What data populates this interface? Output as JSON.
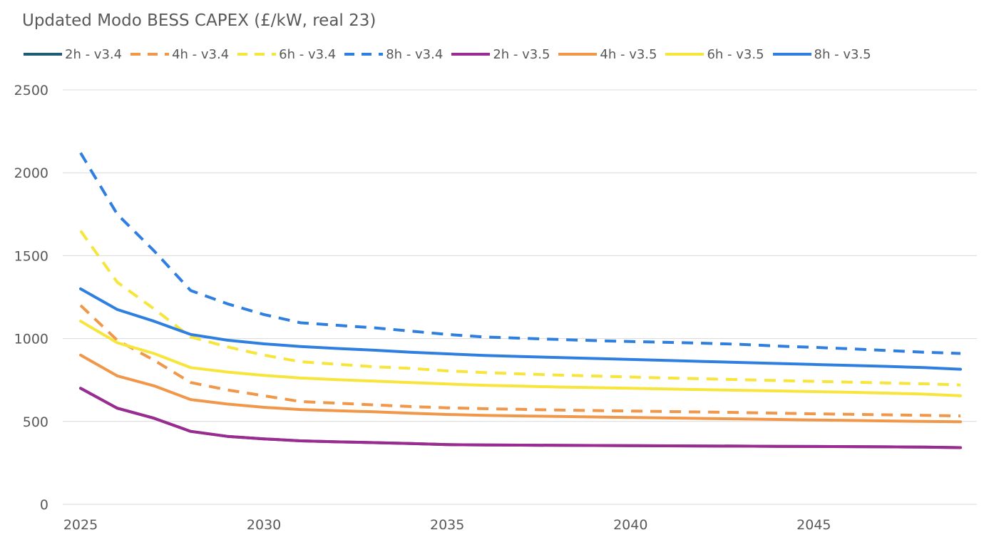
{
  "chart_data": {
    "type": "line",
    "title": "Updated Modo BESS CAPEX (£/kW, real 23)",
    "xlabel": "",
    "ylabel": "",
    "ylim": [
      0,
      2500
    ],
    "yticks": [
      0,
      500,
      1000,
      1500,
      2000,
      2500
    ],
    "xticks": [
      2025,
      2030,
      2035,
      2040,
      2045
    ],
    "xlim": [
      2025,
      2049
    ],
    "grid": true,
    "legend_position": "top",
    "x": [
      2025,
      2026,
      2027,
      2028,
      2029,
      2030,
      2031,
      2032,
      2033,
      2034,
      2035,
      2036,
      2037,
      2038,
      2039,
      2040,
      2041,
      2042,
      2043,
      2044,
      2045,
      2046,
      2047,
      2048,
      2049
    ],
    "series": [
      {
        "name": "2h - v3.4",
        "color": "#1f5c73",
        "dashed": false,
        "values": [
          700,
          580,
          520,
          440,
          410,
          395,
          383,
          377,
          372,
          367,
          360,
          358,
          357,
          356,
          355,
          354,
          353,
          352,
          351,
          350,
          349,
          348,
          347,
          345,
          342
        ]
      },
      {
        "name": "4h - v3.4",
        "color": "#f0974a",
        "dashed": true,
        "values": [
          1200,
          990,
          870,
          735,
          690,
          655,
          620,
          610,
          600,
          590,
          582,
          577,
          573,
          569,
          566,
          563,
          560,
          557,
          554,
          550,
          546,
          543,
          540,
          537,
          533
        ]
      },
      {
        "name": "6h - v3.4",
        "color": "#f7e53b",
        "dashed": true,
        "values": [
          1650,
          1340,
          1180,
          1010,
          950,
          900,
          860,
          845,
          830,
          820,
          805,
          795,
          787,
          780,
          774,
          768,
          762,
          757,
          752,
          747,
          742,
          737,
          732,
          727,
          720
        ]
      },
      {
        "name": "8h - v3.4",
        "color": "#2f7fe0",
        "dashed": true,
        "values": [
          2120,
          1750,
          1530,
          1290,
          1210,
          1145,
          1095,
          1080,
          1065,
          1045,
          1025,
          1010,
          1002,
          995,
          988,
          982,
          977,
          972,
          965,
          955,
          947,
          938,
          928,
          918,
          910
        ]
      },
      {
        "name": "2h - v3.5",
        "color": "#9b2b91",
        "dashed": false,
        "values": [
          700,
          580,
          520,
          440,
          410,
          395,
          383,
          377,
          372,
          367,
          360,
          358,
          357,
          356,
          355,
          354,
          353,
          352,
          351,
          350,
          349,
          348,
          347,
          345,
          342
        ]
      },
      {
        "name": "4h - v3.5",
        "color": "#f0974a",
        "dashed": false,
        "values": [
          900,
          775,
          715,
          632,
          605,
          585,
          572,
          565,
          558,
          550,
          542,
          537,
          533,
          530,
          527,
          524,
          521,
          518,
          515,
          512,
          509,
          506,
          503,
          500,
          498
        ]
      },
      {
        "name": "6h - v3.5",
        "color": "#f7e53b",
        "dashed": false,
        "values": [
          1105,
          975,
          910,
          825,
          798,
          778,
          762,
          752,
          743,
          735,
          726,
          718,
          713,
          708,
          704,
          700,
          696,
          692,
          688,
          684,
          680,
          676,
          671,
          665,
          655
        ]
      },
      {
        "name": "8h - v3.5",
        "color": "#2f7fe0",
        "dashed": false,
        "values": [
          1300,
          1175,
          1105,
          1025,
          990,
          968,
          952,
          940,
          930,
          918,
          908,
          898,
          892,
          886,
          880,
          874,
          868,
          862,
          856,
          850,
          844,
          838,
          832,
          825,
          815
        ]
      }
    ]
  }
}
